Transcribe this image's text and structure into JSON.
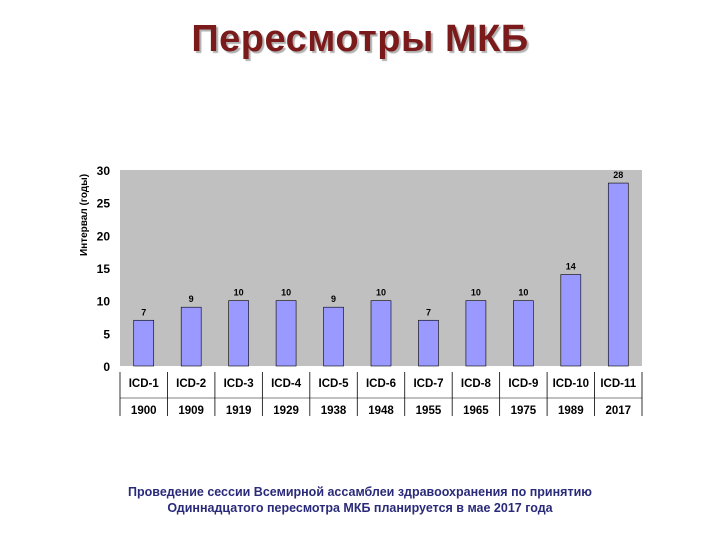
{
  "slide": {
    "title": "Пересмотры МКБ",
    "caption_line1": "Проведение сессии Всемирной ассамблеи здравоохранения по принятию",
    "caption_line2": "Одиннадцатого пересмотра МКБ планируется в мае 2017 года"
  },
  "colors": {
    "title": "#7a1a1a",
    "bar_fill": "#9999ff",
    "plot_bg": "#c0c0c0",
    "caption": "#2a2a7a"
  },
  "chart_data": {
    "type": "bar",
    "categories": [
      "ICD-1",
      "ICD-2",
      "ICD-3",
      "ICD-4",
      "ICD-5",
      "ICD-6",
      "ICD-7",
      "ICD-8",
      "ICD-9",
      "ICD-10",
      "ICD-11"
    ],
    "years": [
      "1900",
      "1909",
      "1919",
      "1929",
      "1938",
      "1948",
      "1955",
      "1965",
      "1975",
      "1989",
      "2017"
    ],
    "values": [
      7,
      9,
      10,
      10,
      9,
      10,
      7,
      10,
      10,
      14,
      28
    ],
    "ylabel": "Интервал (годы)",
    "xlabel": "",
    "ylim": [
      0,
      30
    ],
    "yticks": [
      0,
      5,
      10,
      15,
      20,
      25,
      30
    ],
    "data_labels": true,
    "grid": false,
    "legend": "none"
  }
}
